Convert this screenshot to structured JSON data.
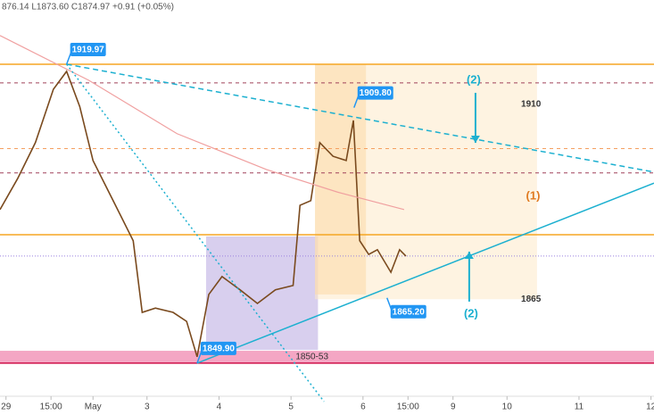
{
  "header": {
    "ohlc": "876.14 L1873.60 C1874.97 +0.91 (+0.05%)"
  },
  "chart_data": {
    "type": "line",
    "xlim": [
      -2,
      216
    ],
    "ylim": [
      1842.35,
      1935.03
    ],
    "xticks": [
      {
        "value": 0,
        "label": "29"
      },
      {
        "value": 15,
        "label": "15:00"
      },
      {
        "value": 29,
        "label": "May"
      },
      {
        "value": 47,
        "label": "3"
      },
      {
        "value": 71,
        "label": "4"
      },
      {
        "value": 95,
        "label": "5"
      },
      {
        "value": 119,
        "label": "6"
      },
      {
        "value": 134,
        "label": "15:00"
      },
      {
        "value": 149,
        "label": "9"
      },
      {
        "value": 167,
        "label": "10"
      },
      {
        "value": 191,
        "label": "11"
      },
      {
        "value": 215,
        "label": "12"
      }
    ],
    "series": [
      {
        "color": "#7a4a1e",
        "x": [
          -2,
          3.9,
          9.8,
          15.8,
          20.2,
          24.6,
          29,
          33.5,
          38,
          42.4,
          45.4,
          49.8,
          55.7,
          60.2,
          63.7,
          67.6,
          72,
          78,
          83.8,
          89.8,
          95.7,
          98,
          101.6,
          104.6,
          109,
          113.4,
          115.8,
          117.9,
          120.9,
          123.8,
          128.3,
          131.2,
          133.3
        ],
        "values": [
          1885.9,
          1893.2,
          1901.6,
          1914.1,
          1918.3,
          1910,
          1897.4,
          1891.1,
          1884.8,
          1878.6,
          1861.8,
          1862.8,
          1861.8,
          1859.7,
          1851.4,
          1866,
          1870.2,
          1867.1,
          1863.9,
          1867.1,
          1868.1,
          1886.9,
          1888,
          1901.6,
          1898.4,
          1897.4,
          1906.8,
          1878.6,
          1875.4,
          1876.5,
          1871.2,
          1876.5,
          1875
        ]
      },
      {
        "color": "#f0a0a0",
        "x": [
          -2,
          27.6,
          57,
          86.8,
          110.5,
          132.7
        ],
        "values": [
          1926.7,
          1916.2,
          1903.7,
          1895.3,
          1890,
          1885.9
        ]
      }
    ],
    "levels": [
      {
        "value": 1919.97,
        "color": "#f5a623",
        "dash": "none"
      },
      {
        "value": 1880,
        "color": "#f5a623",
        "dash": "none"
      },
      {
        "value": 1915.6,
        "color": "#a0405a",
        "dash": "4 4"
      },
      {
        "value": 1900.2,
        "color": "#f5a060",
        "dash": "4 4"
      },
      {
        "value": 1894.5,
        "color": "#a0405a",
        "dash": "4 4"
      },
      {
        "value": 1875,
        "color": "#9a80e0",
        "dash": "1 2"
      },
      {
        "value": 1849.9,
        "color": "#d0104a",
        "dash": "none"
      }
    ],
    "band": {
      "y": [
        1849.9,
        1852.8
      ],
      "color": "#f4a6c4",
      "label": "1850-53"
    },
    "boxes": [
      {
        "x": [
          66.7,
          104
        ],
        "y": [
          1853,
          1879.6
        ],
        "color": "#b8a8e0"
      },
      {
        "x": [
          103,
          177
        ],
        "y": [
          1864.9,
          1919.97
        ],
        "color": "#fde9c8"
      },
      {
        "x": [
          103,
          120
        ],
        "y": [
          1866,
          1919.97
        ],
        "color": "#fbd9a8"
      }
    ],
    "trendlines": [
      {
        "x": [
          63.7,
          216
        ],
        "y": [
          1849.9,
          1892.1
        ],
        "color": "#1cb0d0",
        "dash": "none"
      },
      {
        "x": [
          20.2,
          216
        ],
        "y": [
          1919.97,
          1894.7
        ],
        "color": "#1cb0d0",
        "dash": "6 4"
      },
      {
        "x": [
          20.2,
          106
        ],
        "y": [
          1919.97,
          1840.9
        ],
        "color": "#1cb0d0",
        "dash": "2 3"
      }
    ],
    "callouts": [
      {
        "label": "1919.97",
        "x": 20.2,
        "y": 1919.97
      },
      {
        "label": "1909.80",
        "x": 116,
        "y": 1909.8
      },
      {
        "label": "1865.20",
        "x": 127,
        "y": 1865.2
      },
      {
        "label": "1849.90",
        "x": 63.7,
        "y": 1849.9
      }
    ],
    "annotations": [
      {
        "text": "(2)",
        "x": 155.9,
        "y": 1916.2,
        "color": "#1cb0d0",
        "arrow": "down"
      },
      {
        "text": "(2)",
        "x": 155,
        "y": 1861.4,
        "color": "#1cb0d0",
        "arrow": "up"
      },
      {
        "text": "(1)",
        "x": 175.7,
        "y": 1889,
        "color": "#e07a20",
        "arrow": "none"
      },
      {
        "text": "1910",
        "x": 175,
        "y": 1910.6,
        "color": "#333333",
        "arrow": "none"
      },
      {
        "text": "1865",
        "x": 175,
        "y": 1864.9,
        "color": "#333333",
        "arrow": "none"
      }
    ]
  }
}
